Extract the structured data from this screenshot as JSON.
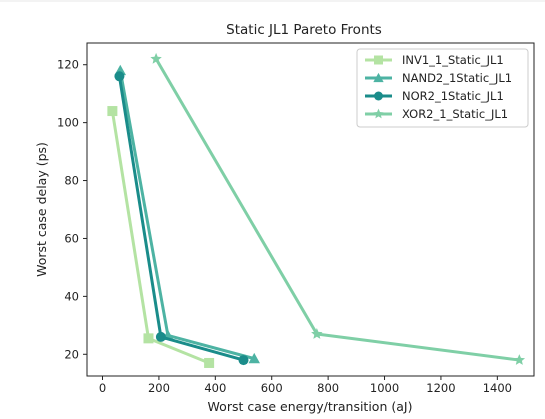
{
  "chart_data": {
    "type": "line",
    "title": "Static JL1 Pareto Fronts",
    "xlabel": "Worst case energy/transition (aJ)",
    "ylabel": "Worst case delay (ps)",
    "xlim": [
      -55,
      1530
    ],
    "ylim": [
      12.5,
      127.5
    ],
    "xticks": [
      0,
      200,
      400,
      600,
      800,
      1000,
      1200,
      1400
    ],
    "yticks": [
      20,
      40,
      60,
      80,
      100,
      120
    ],
    "grid": false,
    "legend_position": "upper right",
    "series": [
      {
        "name": "INV1_1_Static_JL1",
        "color": "#b4e3a3",
        "marker": "square",
        "points": [
          [
            35,
            104
          ],
          [
            163,
            25.5
          ],
          [
            378,
            17
          ]
        ]
      },
      {
        "name": "NAND2_1Static_JL1",
        "color": "#4db3a3",
        "marker": "triangle",
        "points": [
          [
            63,
            118
          ],
          [
            232,
            26.5
          ],
          [
            538,
            18.5
          ]
        ]
      },
      {
        "name": "NOR2_1Static_JL1",
        "color": "#1a8c8a",
        "marker": "circle",
        "points": [
          [
            60,
            116
          ],
          [
            207,
            26
          ],
          [
            500,
            18
          ]
        ]
      },
      {
        "name": "XOR2_1_Static_JL1",
        "color": "#7fcfa6",
        "marker": "star",
        "points": [
          [
            190,
            122
          ],
          [
            760,
            27
          ],
          [
            1478,
            18
          ]
        ]
      }
    ]
  }
}
